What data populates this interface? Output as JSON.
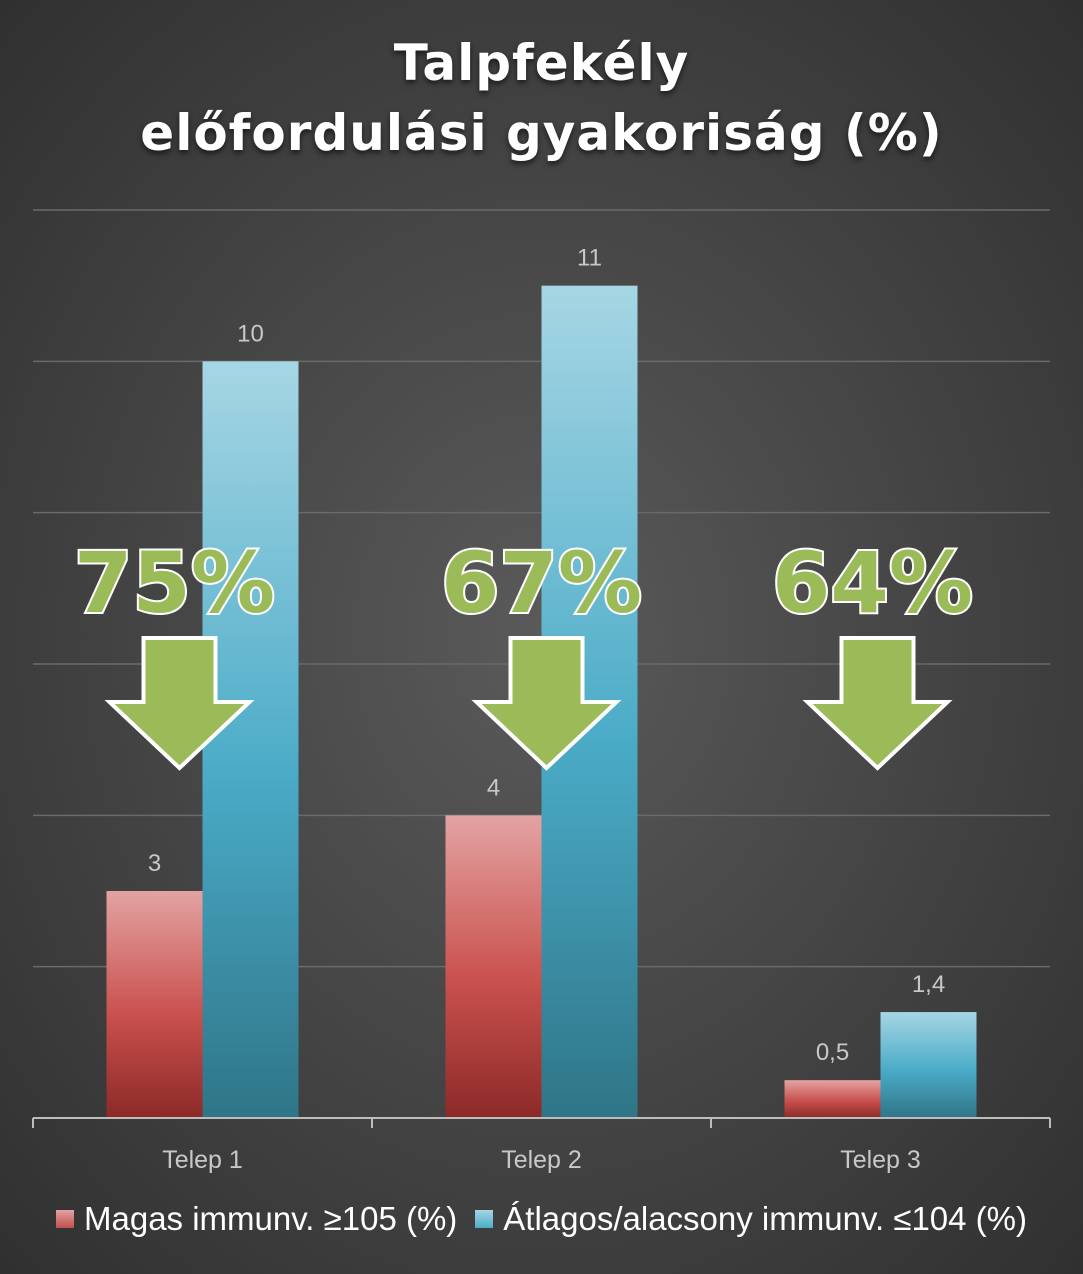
{
  "chart_data": {
    "type": "bar",
    "title_lines": [
      "Talpfekély",
      "előfordulási gyakoriság (%)"
    ],
    "categories": [
      "Telep 1",
      "Telep 2",
      "Telep 3"
    ],
    "series": [
      {
        "name": "Magas immunv. ≥105 (%)",
        "values": [
          3,
          4,
          0.5
        ],
        "labels": [
          "3",
          "4",
          "0,5"
        ],
        "color": "#c0504d"
      },
      {
        "name": "Átlagos/alacsony immunv. ≤104 (%)",
        "values": [
          10,
          11,
          1.4
        ],
        "labels": [
          "10",
          "11",
          "1,4"
        ],
        "color": "#4bacc6"
      }
    ],
    "ylim": [
      0,
      12
    ],
    "grid": true,
    "legend": "bottom",
    "annotations": [
      {
        "category": "Telep 1",
        "text": "75%"
      },
      {
        "category": "Telep 2",
        "text": "67%"
      },
      {
        "category": "Telep 3",
        "text": "64%"
      }
    ],
    "annotation_color": "#9bbb59"
  }
}
